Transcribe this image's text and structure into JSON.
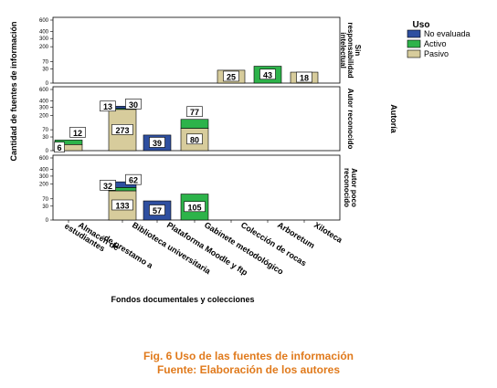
{
  "chart_data": {
    "type": "bar",
    "stacked": true,
    "yaxis_scale": "sqrt",
    "y_ticks": [
      0,
      30,
      70,
      200,
      300,
      400,
      600
    ],
    "xlabel": "Fondos documentales y colecciones",
    "ylabel": "Cantidad de fuentes de información",
    "panel_group_label": "Autoría",
    "legend": {
      "title": "Uso",
      "placement": "top-right",
      "entries": [
        "No evaluada",
        "Activo",
        "Pasivo"
      ]
    },
    "colors": {
      "No evaluada": "#2E4FA0",
      "Activo": "#2DB34A",
      "Pasivo": "#D7CC9C"
    },
    "categories": [
      "Almacén de estudiantes",
      "Biblioteca universitaria",
      "Plataforma Moodle y ftp",
      "Gabinete metodológico",
      "Colección de rocas",
      "Arboretum",
      "Xiloteca"
    ],
    "panels": [
      {
        "label": "Sin responsabilidad intelectual",
        "series": [
          {
            "name": "No evaluada",
            "values": [
              0,
              0,
              0,
              0,
              0,
              0,
              0
            ]
          },
          {
            "name": "Activo",
            "values": [
              0,
              0,
              0,
              0,
              0,
              43,
              0
            ]
          },
          {
            "name": "Pasivo",
            "values": [
              0,
              0,
              0,
              0,
              25,
              0,
              18
            ]
          }
        ]
      },
      {
        "label": "Autor reconocido",
        "series": [
          {
            "name": "No evaluada",
            "values": [
              0,
              30,
              39,
              0,
              0,
              0,
              0
            ]
          },
          {
            "name": "Activo",
            "values": [
              12,
              13,
              0,
              77,
              0,
              0,
              0
            ]
          },
          {
            "name": "Pasivo",
            "values": [
              6,
              273,
              0,
              80,
              0,
              0,
              0
            ]
          }
        ]
      },
      {
        "label": "Autor poco reconocido",
        "series": [
          {
            "name": "No evaluada",
            "values": [
              0,
              62,
              57,
              0,
              0,
              0,
              0
            ]
          },
          {
            "name": "Activo",
            "values": [
              0,
              32,
              0,
              105,
              0,
              0,
              0
            ]
          },
          {
            "name": "Pasivo",
            "values": [
              0,
              133,
              0,
              0,
              0,
              0,
              0
            ]
          }
        ]
      }
    ]
  },
  "caption": {
    "line1": "Fig. 6 Uso de las fuentes de información",
    "line2": "Fuente: Elaboración de los autores"
  }
}
